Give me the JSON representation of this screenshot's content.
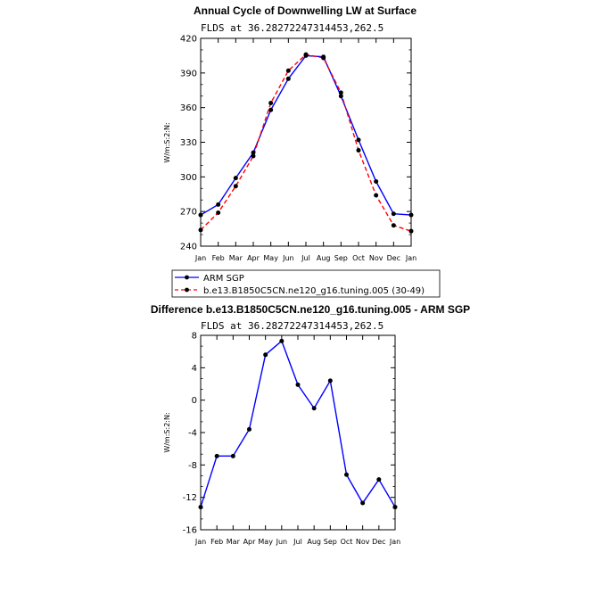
{
  "chart_data": [
    {
      "type": "line",
      "title": "Annual Cycle of Downwelling LW at Surface",
      "subtitle": "FLDS at 36.28272247314453,262.5",
      "ylabel": "W/m:S:2:N:",
      "xlabel": "",
      "categories": [
        "Jan",
        "Feb",
        "Mar",
        "Apr",
        "May",
        "Jun",
        "Jul",
        "Aug",
        "Sep",
        "Oct",
        "Nov",
        "Dec",
        "Jan"
      ],
      "ylim": [
        240,
        420
      ],
      "yticks": [
        240,
        270,
        300,
        330,
        360,
        390,
        420
      ],
      "legend_position": "below",
      "series": [
        {
          "name": "ARM SGP",
          "color": "#0000ff",
          "dash": "solid",
          "values": [
            267,
            276,
            299,
            321,
            358,
            385,
            405,
            404,
            370,
            332,
            296,
            268,
            267
          ]
        },
        {
          "name": "b.e13.B1850C5CN.ne120_g16.tuning.005 (30-49)",
          "color": "#ff0000",
          "dash": "dashed",
          "values": [
            254,
            269,
            292,
            318,
            364,
            392,
            406,
            403,
            373,
            323,
            284,
            258,
            253
          ]
        }
      ]
    },
    {
      "type": "line",
      "title": "Difference b.e13.B1850C5CN.ne120_g16.tuning.005 - ARM SGP",
      "subtitle": "FLDS at 36.28272247314453,262.5",
      "ylabel": "W/m:S:2:N:",
      "xlabel": "",
      "categories": [
        "Jan",
        "Feb",
        "Mar",
        "Apr",
        "May",
        "Jun",
        "Jul",
        "Aug",
        "Sep",
        "Oct",
        "Nov",
        "Dec",
        "Jan"
      ],
      "ylim": [
        -16,
        8
      ],
      "yticks": [
        -16,
        -12,
        -8,
        -4,
        0,
        4,
        8
      ],
      "series": [
        {
          "color": "#0000ff",
          "dash": "solid",
          "values": [
            -13.2,
            -6.9,
            -6.9,
            -3.6,
            5.6,
            7.3,
            1.9,
            -1.0,
            2.4,
            -9.2,
            -12.7,
            -9.8,
            -13.2
          ]
        }
      ]
    }
  ]
}
